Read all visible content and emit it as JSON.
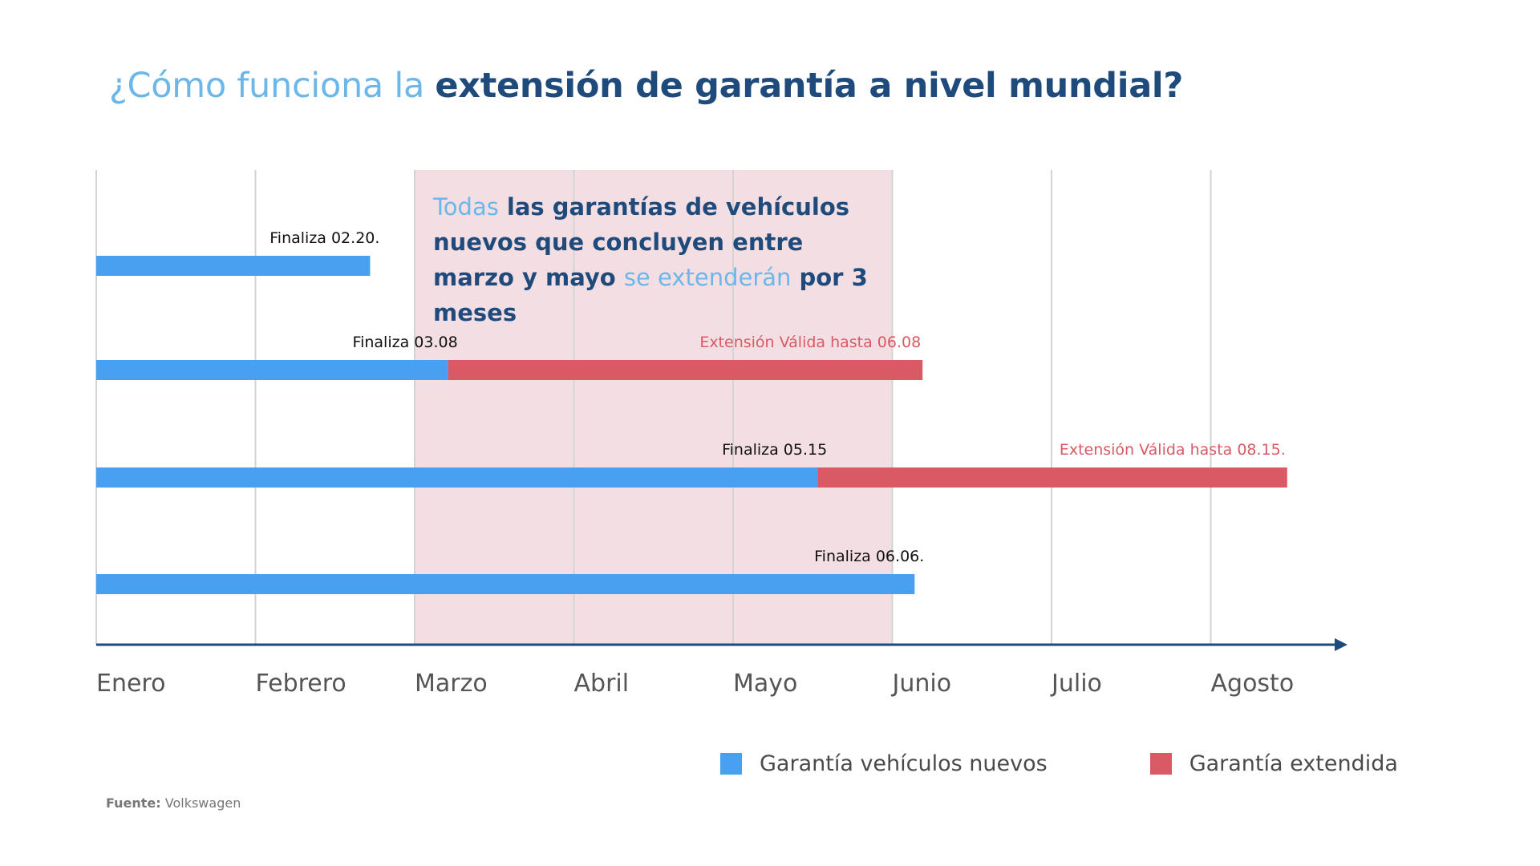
{
  "title": {
    "part1": "¿Cómo funciona la ",
    "part2": "extensión de garantía a nivel mundial?"
  },
  "callout": {
    "part1": "Todas",
    "part2": " las garantías de vehículos nuevos que concluyen entre marzo y mayo ",
    "part3": "se extenderán",
    "part4": " por 3 meses"
  },
  "colors": {
    "title_light": "#6bb7ea",
    "title_dark": "#1f4a7c",
    "new_warranty": "#4aa0f0",
    "extended_warranty": "#d95964",
    "highlight_band": "#f3dfe3",
    "axis": "#1f4a7c",
    "gridline": "#d3d3d3"
  },
  "chart_data": {
    "type": "timeline",
    "x_unit": "month",
    "categories": [
      "Enero",
      "Febrero",
      "Marzo",
      "Abril",
      "Mayo",
      "Junio",
      "Julio",
      "Agosto"
    ],
    "xlim": [
      0,
      7.9
    ],
    "highlight_period": {
      "from": 2,
      "to": 5
    },
    "grid": true,
    "legend_position": "bottom-right",
    "series": [
      {
        "name": "Garantía vehículos nuevos",
        "color": "#4aa0f0"
      },
      {
        "name": "Garantía extendida",
        "color": "#d95964"
      }
    ],
    "rows": [
      {
        "start": 0,
        "end": 1.72,
        "end_label": "Finaliza 02.20.",
        "extension_end": null,
        "extension_label": ""
      },
      {
        "start": 0,
        "end": 2.21,
        "end_label": "Finaliza 03.08",
        "extension_end": 5.19,
        "extension_label": "Extensión Válida hasta 06.08"
      },
      {
        "start": 0,
        "end": 4.53,
        "end_label": "Finaliza 05.15",
        "extension_end": 7.48,
        "extension_label": "Extensión Válida hasta 08.15."
      },
      {
        "start": 0,
        "end": 5.14,
        "end_label": "Finaliza 06.06.",
        "extension_end": null,
        "extension_label": ""
      }
    ]
  },
  "legend": [
    {
      "label": "Garantía vehículos nuevos",
      "color": "#4aa0f0"
    },
    {
      "label": "Garantía extendida",
      "color": "#d95964"
    }
  ],
  "source": {
    "label": "Fuente:",
    "value": " Volkswagen"
  }
}
